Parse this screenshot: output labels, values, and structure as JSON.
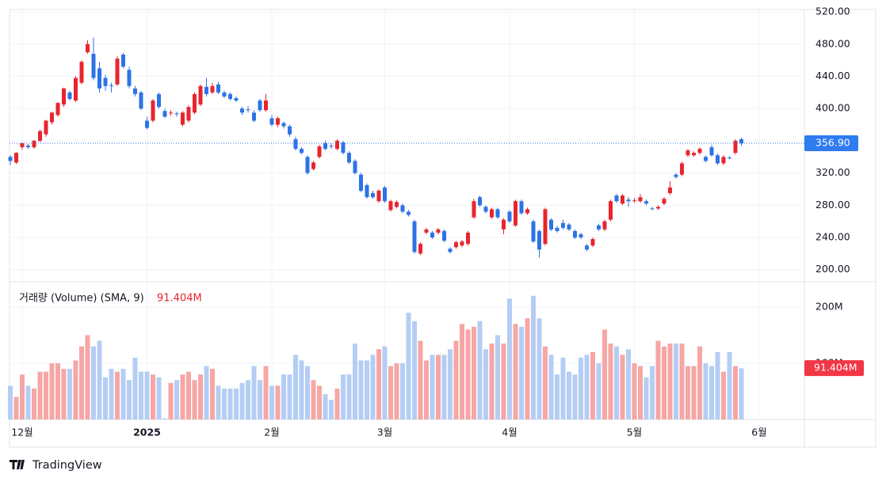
{
  "chart_data": {
    "type": "candlestick",
    "categories": [
      null,
      null,
      "12월",
      null,
      null,
      null,
      null,
      null,
      null,
      null,
      null,
      null,
      null,
      null,
      null,
      null,
      null,
      null,
      null,
      null,
      null,
      null,
      null,
      "2025",
      null,
      null,
      null,
      null,
      null,
      null,
      null,
      null,
      null,
      null,
      null,
      null,
      null,
      null,
      null,
      null,
      null,
      null,
      null,
      null,
      "2월",
      null,
      null,
      null,
      null,
      null,
      null,
      null,
      null,
      null,
      null,
      null,
      null,
      null,
      null,
      null,
      null,
      null,
      null,
      "3월",
      null,
      null,
      null,
      null,
      null,
      null,
      null,
      null,
      null,
      null,
      null,
      null,
      null,
      null,
      null,
      null,
      null,
      null,
      null,
      null,
      "4월",
      null,
      null,
      null,
      null,
      null,
      null,
      null,
      null,
      null,
      null,
      null,
      null,
      null,
      null,
      null,
      null,
      null,
      null,
      null,
      null,
      "5월",
      null,
      null,
      null,
      null,
      null,
      null,
      null,
      null,
      null,
      null,
      null,
      null,
      null,
      null,
      null,
      null,
      null,
      null,
      null,
      null,
      "6월"
    ],
    "ohlc": [
      [
        340,
        342,
        330,
        335
      ],
      [
        333,
        346,
        331,
        345
      ],
      [
        352,
        358,
        349,
        357
      ],
      [
        354,
        356,
        350,
        352
      ],
      [
        352,
        361,
        350,
        360
      ],
      [
        360,
        374,
        358,
        372
      ],
      [
        368,
        386,
        365,
        385
      ],
      [
        383,
        396,
        380,
        395
      ],
      [
        392,
        408,
        390,
        407
      ],
      [
        405,
        426,
        402,
        425
      ],
      [
        420,
        422,
        410,
        412
      ],
      [
        410,
        440,
        408,
        438
      ],
      [
        432,
        460,
        430,
        458
      ],
      [
        470,
        485,
        468,
        480
      ],
      [
        468,
        488,
        435,
        438
      ],
      [
        450,
        458,
        420,
        425
      ],
      [
        438,
        442,
        422,
        428
      ],
      [
        429,
        432,
        420,
        428
      ],
      [
        430,
        465,
        428,
        462
      ],
      [
        467,
        469,
        450,
        452
      ],
      [
        448,
        452,
        425,
        428
      ],
      [
        425,
        428,
        415,
        418
      ],
      [
        420,
        422,
        398,
        400
      ],
      [
        385,
        390,
        374,
        376
      ],
      [
        385,
        412,
        383,
        410
      ],
      [
        418,
        420,
        400,
        402
      ],
      [
        397,
        400,
        388,
        390
      ],
      [
        394,
        398,
        391,
        395
      ],
      [
        394,
        396,
        390,
        393
      ],
      [
        380,
        397,
        378,
        395
      ],
      [
        385,
        404,
        383,
        402
      ],
      [
        395,
        420,
        393,
        418
      ],
      [
        405,
        430,
        403,
        428
      ],
      [
        427,
        438,
        415,
        418
      ],
      [
        420,
        432,
        418,
        428
      ],
      [
        430,
        433,
        418,
        420
      ],
      [
        420,
        422,
        413,
        415
      ],
      [
        418,
        420,
        410,
        412
      ],
      [
        413,
        415,
        408,
        410
      ],
      [
        400,
        402,
        392,
        395
      ],
      [
        399,
        403,
        395,
        398
      ],
      [
        395,
        398,
        383,
        385
      ],
      [
        410,
        412,
        396,
        398
      ],
      [
        398,
        418,
        396,
        410
      ],
      [
        388,
        392,
        378,
        380
      ],
      [
        380,
        390,
        377,
        388
      ],
      [
        382,
        384,
        375,
        378
      ],
      [
        378,
        380,
        365,
        368
      ],
      [
        362,
        365,
        348,
        350
      ],
      [
        350,
        352,
        343,
        345
      ],
      [
        340,
        342,
        318,
        320
      ],
      [
        325,
        335,
        323,
        333
      ],
      [
        340,
        355,
        338,
        353
      ],
      [
        357,
        360,
        348,
        350
      ],
      [
        354,
        357,
        350,
        353
      ],
      [
        350,
        362,
        348,
        360
      ],
      [
        358,
        360,
        343,
        345
      ],
      [
        345,
        347,
        331,
        333
      ],
      [
        335,
        337,
        318,
        320
      ],
      [
        318,
        320,
        296,
        298
      ],
      [
        305,
        307,
        288,
        290
      ],
      [
        295,
        298,
        288,
        290
      ],
      [
        285,
        300,
        283,
        298
      ],
      [
        302,
        304,
        283,
        285
      ],
      [
        274,
        287,
        272,
        285
      ],
      [
        278,
        286,
        276,
        284
      ],
      [
        280,
        282,
        270,
        272
      ],
      [
        272,
        274,
        266,
        268
      ],
      [
        260,
        262,
        220,
        222
      ],
      [
        220,
        234,
        218,
        232
      ],
      [
        246,
        252,
        244,
        250
      ],
      [
        246,
        248,
        238,
        240
      ],
      [
        246,
        252,
        244,
        250
      ],
      [
        248,
        250,
        234,
        236
      ],
      [
        226,
        228,
        220,
        222
      ],
      [
        228,
        236,
        226,
        234
      ],
      [
        230,
        237,
        228,
        235
      ],
      [
        232,
        248,
        230,
        246
      ],
      [
        265,
        288,
        263,
        285
      ],
      [
        290,
        292,
        278,
        280
      ],
      [
        278,
        280,
        270,
        272
      ],
      [
        265,
        277,
        263,
        275
      ],
      [
        275,
        277,
        263,
        265
      ],
      [
        250,
        264,
        244,
        262
      ],
      [
        272,
        274,
        258,
        260
      ],
      [
        255,
        287,
        253,
        285
      ],
      [
        285,
        287,
        268,
        270
      ],
      [
        270,
        277,
        268,
        275
      ],
      [
        260,
        262,
        233,
        235
      ],
      [
        248,
        250,
        215,
        225
      ],
      [
        232,
        277,
        230,
        275
      ],
      [
        262,
        264,
        248,
        250
      ],
      [
        252,
        254,
        246,
        248
      ],
      [
        258,
        262,
        250,
        252
      ],
      [
        256,
        258,
        248,
        250
      ],
      [
        248,
        250,
        238,
        240
      ],
      [
        244,
        246,
        238,
        240
      ],
      [
        230,
        232,
        223,
        225
      ],
      [
        230,
        240,
        228,
        238
      ],
      [
        255,
        257,
        248,
        250
      ],
      [
        250,
        262,
        248,
        260
      ],
      [
        262,
        287,
        260,
        285
      ],
      [
        292,
        294,
        283,
        285
      ],
      [
        282,
        294,
        280,
        292
      ],
      [
        287,
        290,
        278,
        285
      ],
      [
        286,
        289,
        283,
        286
      ],
      [
        285,
        294,
        283,
        290
      ],
      [
        285,
        287,
        280,
        282
      ],
      [
        276,
        278,
        274,
        275
      ],
      [
        276,
        280,
        274,
        278
      ],
      [
        282,
        290,
        280,
        288
      ],
      [
        295,
        310,
        293,
        302
      ],
      [
        318,
        320,
        313,
        315
      ],
      [
        318,
        334,
        316,
        332
      ],
      [
        342,
        350,
        340,
        348
      ],
      [
        342,
        347,
        340,
        345
      ],
      [
        345,
        352,
        343,
        350
      ],
      [
        340,
        342,
        333,
        335
      ],
      [
        352,
        355,
        340,
        342
      ],
      [
        342,
        344,
        330,
        332
      ],
      [
        332,
        342,
        330,
        340
      ],
      [
        339,
        341,
        337,
        338
      ],
      [
        345,
        362,
        343,
        360
      ],
      [
        362,
        364,
        354,
        356.9
      ],
      null,
      null,
      null
    ],
    "volume": [
      60,
      40,
      80,
      60,
      55,
      85,
      85,
      100,
      100,
      90,
      90,
      105,
      130,
      150,
      130,
      140,
      75,
      90,
      85,
      90,
      70,
      110,
      85,
      85,
      80,
      75,
      2,
      65,
      70,
      80,
      85,
      70,
      80,
      95,
      90,
      60,
      55,
      55,
      55,
      65,
      70,
      95,
      70,
      95,
      60,
      60,
      80,
      80,
      115,
      105,
      95,
      70,
      60,
      45,
      35,
      55,
      80,
      80,
      135,
      105,
      105,
      115,
      125,
      130,
      95,
      100,
      100,
      190,
      175,
      140,
      105,
      115,
      115,
      115,
      125,
      140,
      170,
      160,
      165,
      175,
      125,
      135,
      150,
      135,
      215,
      170,
      165,
      180,
      220,
      180,
      130,
      115,
      80,
      110,
      85,
      80,
      110,
      115,
      120,
      100,
      160,
      135,
      130,
      115,
      125,
      100,
      95,
      75,
      95,
      140,
      130,
      135,
      135,
      135,
      95,
      95,
      130,
      100,
      95,
      120,
      85,
      120,
      95,
      91,
      null,
      null,
      null
    ],
    "up_color": "#e8252e",
    "down_color": "#2d73e6",
    "up_volume_color": "#f6a6a4",
    "down_volume_color": "#b4cdf4",
    "ylim": [
      185,
      523
    ],
    "yticks": [
      {
        "value": 200,
        "label": "200.00"
      },
      {
        "value": 240,
        "label": "240.00"
      },
      {
        "value": 280,
        "label": "280.00"
      },
      {
        "value": 320,
        "label": "320.00"
      },
      {
        "value": 360,
        "label": "360.00"
      },
      {
        "value": 400,
        "label": "400.00"
      },
      {
        "value": 440,
        "label": "440.00"
      },
      {
        "value": 480,
        "label": "480.00"
      },
      {
        "value": 520,
        "label": "520.00"
      }
    ],
    "last": {
      "value": 356.9,
      "label": "356.90"
    },
    "volume_title": "거래량 (Volume) (SMA, 9)",
    "sma": {
      "value": 91.404,
      "label": "91.404M"
    },
    "vlim": [
      0,
      245
    ],
    "vticks": [
      {
        "value": 100,
        "label": "100M"
      },
      {
        "value": 200,
        "label": "200M"
      }
    ],
    "grid": true,
    "brand": "TradingView"
  }
}
